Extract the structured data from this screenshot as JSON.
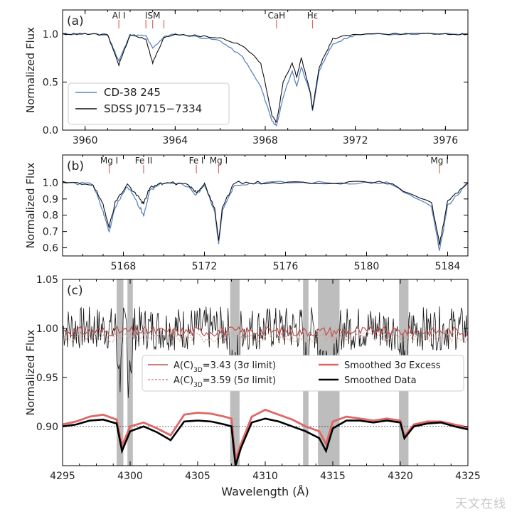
{
  "watermark": "天文在线",
  "chart_data": [
    {
      "type": "line",
      "panel_label": "(a)",
      "ylabel": "Normalized Flux",
      "xlim": [
        3959,
        3977
      ],
      "ylim": [
        0.0,
        1.25
      ],
      "xticks": [
        3960,
        3964,
        3968,
        3972,
        3976
      ],
      "yticks": [
        0.0,
        0.5,
        1.0
      ],
      "ytick_labels": [
        "0.0",
        "0.5",
        "1.0"
      ],
      "legend_position": "lower-left",
      "line_annotations": [
        {
          "label": "Al I",
          "x": 3961.5
        },
        {
          "label": "ISM",
          "x": 3963.0
        },
        {
          "label": "",
          "x": 3962.7
        },
        {
          "label": "",
          "x": 3963.5
        },
        {
          "label": "CaH",
          "x": 3968.5
        },
        {
          "label": "Hε",
          "x": 3970.1
        }
      ],
      "series": [
        {
          "name": "CD-38 245",
          "color": "#5b85c6",
          "x": [
            3959,
            3960,
            3961,
            3961.5,
            3962,
            3962.7,
            3963,
            3963.5,
            3964,
            3965,
            3966,
            3967,
            3967.8,
            3968.3,
            3968.5,
            3968.8,
            3969.2,
            3969.4,
            3969.6,
            3970.0,
            3970.1,
            3970.4,
            3971,
            3972,
            3974,
            3976,
            3977
          ],
          "values": [
            1.0,
            1.0,
            0.99,
            0.72,
            0.99,
            0.98,
            0.85,
            0.97,
            1.0,
            0.97,
            0.93,
            0.76,
            0.45,
            0.1,
            0.04,
            0.35,
            0.62,
            0.45,
            0.66,
            0.38,
            0.2,
            0.62,
            0.9,
            0.99,
            1.0,
            1.0,
            1.0
          ]
        },
        {
          "name": "SDSS J0715−7334",
          "color": "#111111",
          "x": [
            3959,
            3960,
            3961,
            3961.5,
            3962,
            3962.7,
            3963,
            3963.5,
            3964,
            3965,
            3966,
            3967,
            3967.8,
            3968.3,
            3968.5,
            3968.8,
            3969.2,
            3969.4,
            3969.6,
            3970.0,
            3970.1,
            3970.4,
            3971,
            3972,
            3974,
            3976,
            3977
          ],
          "values": [
            1.0,
            1.0,
            0.99,
            0.68,
            0.99,
            0.95,
            0.7,
            0.96,
            1.0,
            0.98,
            0.96,
            0.88,
            0.7,
            0.15,
            0.08,
            0.5,
            0.7,
            0.55,
            0.75,
            0.4,
            0.22,
            0.66,
            0.95,
            1.0,
            1.0,
            1.0,
            1.0
          ]
        }
      ]
    },
    {
      "type": "line",
      "panel_label": "(b)",
      "ylabel": "Normalized Flux",
      "xlim": [
        5165,
        5185
      ],
      "ylim": [
        0.55,
        1.17
      ],
      "xticks": [
        5168,
        5172,
        5176,
        5180,
        5184
      ],
      "yticks": [
        0.6,
        0.7,
        0.8,
        0.9,
        1.0
      ],
      "ytick_labels": [
        "0.6",
        "0.7",
        "0.8",
        "0.9",
        "1.0"
      ],
      "line_annotations": [
        {
          "label": "Mg I",
          "x": 5167.3
        },
        {
          "label": "Fe II",
          "x": 5169.0
        },
        {
          "label": "Fe I",
          "x": 5171.6
        },
        {
          "label": "Mg I",
          "x": 5172.7
        },
        {
          "label": "Mg I",
          "x": 5183.6
        }
      ],
      "series": [
        {
          "name": "CD-38 245",
          "color": "#5b85c6",
          "x": [
            5165,
            5166.5,
            5167.0,
            5167.3,
            5167.6,
            5168.2,
            5168.8,
            5169.0,
            5169.3,
            5170.0,
            5171.2,
            5171.6,
            5172.0,
            5172.5,
            5172.7,
            5172.9,
            5173.5,
            5175,
            5178,
            5181,
            5183.2,
            5183.6,
            5184.0,
            5185
          ],
          "values": [
            1.0,
            0.99,
            0.82,
            0.7,
            0.85,
            0.98,
            0.85,
            0.8,
            0.95,
            1.0,
            0.98,
            0.92,
            0.99,
            0.82,
            0.63,
            0.84,
            0.99,
            1.0,
            1.0,
            1.0,
            0.85,
            0.58,
            0.86,
            1.0
          ]
        },
        {
          "name": "SDSS J0715−7334",
          "color": "#111111",
          "x": [
            5165,
            5166.5,
            5167.0,
            5167.3,
            5167.6,
            5168.2,
            5168.8,
            5169.0,
            5169.3,
            5170.0,
            5171.2,
            5171.6,
            5172.0,
            5172.5,
            5172.7,
            5172.9,
            5173.5,
            5175,
            5178,
            5181,
            5183.2,
            5183.6,
            5184.0,
            5185
          ],
          "values": [
            1.0,
            0.99,
            0.86,
            0.73,
            0.88,
            0.99,
            0.9,
            0.87,
            0.97,
            1.0,
            0.99,
            0.94,
            0.99,
            0.84,
            0.65,
            0.86,
            1.0,
            1.0,
            1.0,
            1.0,
            0.88,
            0.62,
            0.89,
            1.0
          ]
        }
      ]
    },
    {
      "type": "line",
      "panel_label": "(c)",
      "xlabel": "Wavelength (Å)",
      "ylabel": "Normalized Flux",
      "xlim": [
        4295,
        4325
      ],
      "ylim": [
        0.86,
        1.05
      ],
      "xticks": [
        4295,
        4300,
        4305,
        4310,
        4315,
        4320,
        4325
      ],
      "yticks": [
        0.9,
        0.95,
        1.0,
        1.05
      ],
      "ytick_labels": [
        "0.90",
        "0.95",
        "1.00",
        "1.05"
      ],
      "reference_line": 0.9,
      "shaded_regions": [
        [
          4299.0,
          4299.5
        ],
        [
          4299.8,
          4300.2
        ],
        [
          4307.4,
          4308.1
        ],
        [
          4312.8,
          4313.2
        ],
        [
          4313.9,
          4315.5
        ],
        [
          4319.9,
          4320.6
        ]
      ],
      "spectrum_seed": 7,
      "legend": [
        {
          "label": "A(C)",
          "sub": "3D",
          "rest": "=3.43 (3σ limit)",
          "color": "#c0504d",
          "style": "solid"
        },
        {
          "label": "A(C)",
          "sub": "3D",
          "rest": "=3.59 (5σ limit)",
          "color": "#d98c8c",
          "style": "dashed"
        },
        {
          "label": "Smoothed 3σ Excess",
          "color": "#e06666",
          "style": "thick"
        },
        {
          "label": "Smoothed Data",
          "color": "#000000",
          "style": "thick"
        }
      ],
      "series": [
        {
          "name": "Smoothed Data",
          "color": "#000000",
          "x": [
            4295,
            4296,
            4297,
            4298,
            4299,
            4299.4,
            4300,
            4301,
            4302,
            4303,
            4304,
            4305,
            4306,
            4307,
            4307.5,
            4307.8,
            4308.2,
            4309,
            4310,
            4311,
            4312,
            4313,
            4314,
            4314.5,
            4315,
            4316,
            4317,
            4318,
            4319,
            4320,
            4320.3,
            4321,
            4322,
            4323,
            4324,
            4325
          ],
          "values": [
            0.9,
            0.902,
            0.906,
            0.907,
            0.903,
            0.875,
            0.895,
            0.9,
            0.894,
            0.886,
            0.905,
            0.906,
            0.905,
            0.902,
            0.9,
            0.86,
            0.878,
            0.904,
            0.908,
            0.905,
            0.9,
            0.895,
            0.888,
            0.875,
            0.898,
            0.906,
            0.906,
            0.904,
            0.906,
            0.904,
            0.888,
            0.9,
            0.903,
            0.904,
            0.9,
            0.897
          ]
        },
        {
          "name": "Smoothed 3σ Excess",
          "color": "#e06666",
          "x": [
            4295,
            4296,
            4297,
            4298,
            4299,
            4299.4,
            4300,
            4301,
            4302,
            4303,
            4304,
            4305,
            4306,
            4307,
            4307.5,
            4307.8,
            4308.2,
            4309,
            4310,
            4311,
            4312,
            4313,
            4314,
            4314.5,
            4315,
            4316,
            4317,
            4318,
            4319,
            4320,
            4320.3,
            4321,
            4322,
            4323,
            4324,
            4325
          ],
          "values": [
            0.902,
            0.905,
            0.91,
            0.912,
            0.907,
            0.88,
            0.9,
            0.904,
            0.898,
            0.891,
            0.912,
            0.914,
            0.913,
            0.91,
            0.908,
            0.866,
            0.882,
            0.91,
            0.917,
            0.912,
            0.907,
            0.9,
            0.895,
            0.882,
            0.905,
            0.91,
            0.908,
            0.906,
            0.908,
            0.906,
            0.89,
            0.902,
            0.905,
            0.905,
            0.902,
            0.899
          ]
        }
      ]
    }
  ]
}
